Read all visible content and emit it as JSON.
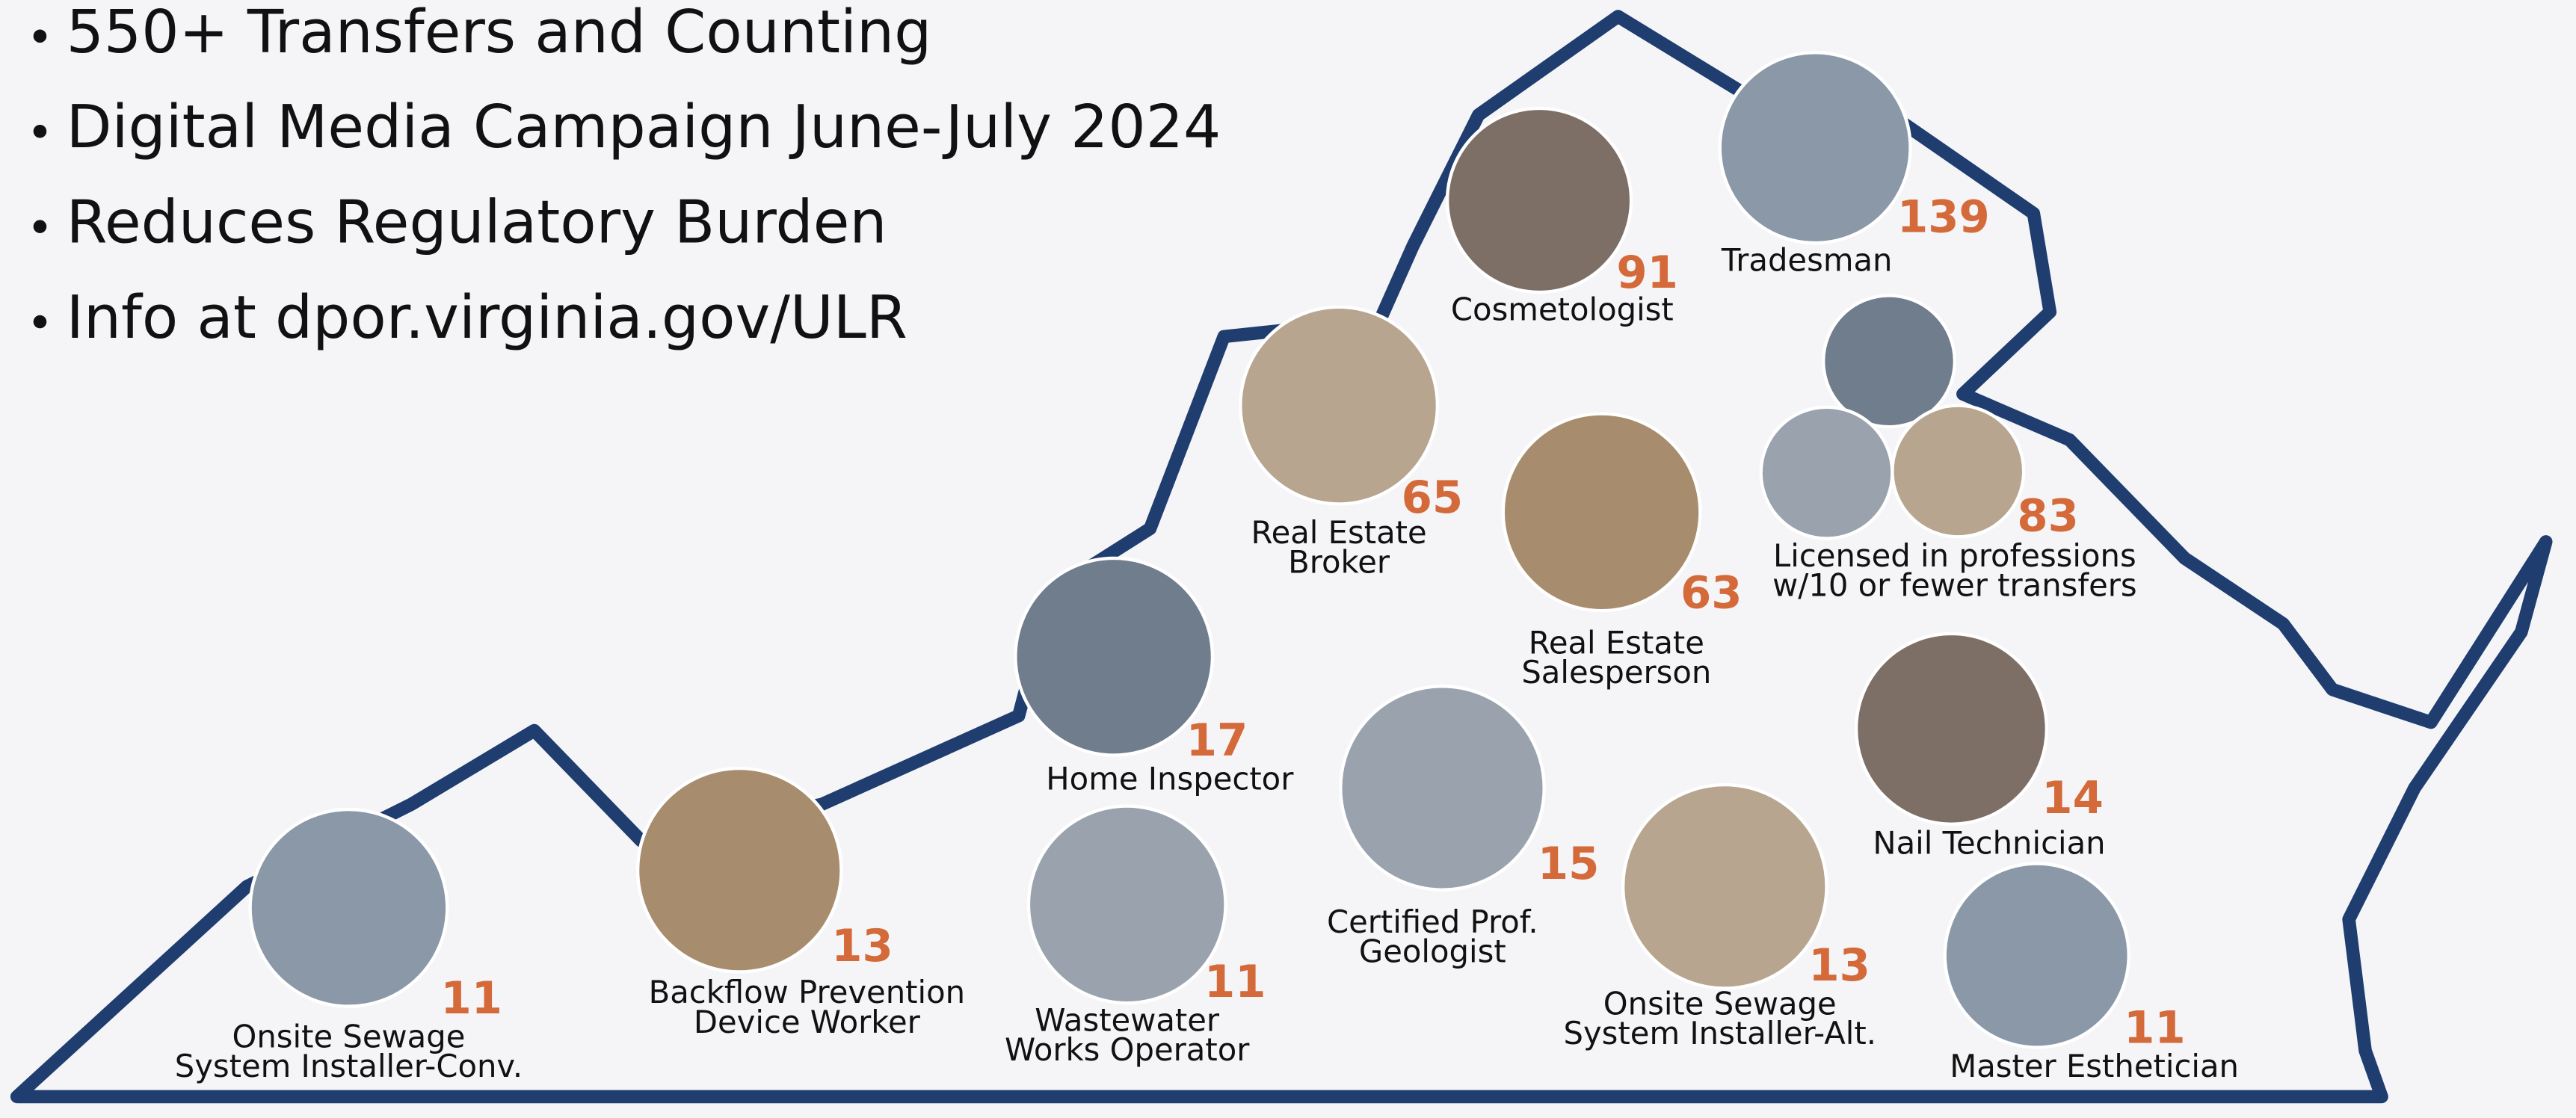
{
  "bullets": [
    "550+ Transfers and Counting",
    "Digital Media Campaign June-July 2024",
    "Reduces Regulatory Burden",
    "Info at dpor.virginia.gov/ULR"
  ],
  "items": [
    {
      "count": "11",
      "label": [
        "Onsite Sewage",
        "System Installer-Conv."
      ]
    },
    {
      "count": "13",
      "label": [
        "Backflow Prevention",
        "Device Worker"
      ]
    },
    {
      "count": "17",
      "label": [
        "Home Inspector"
      ]
    },
    {
      "count": "11",
      "label": [
        "Wastewater",
        "Works Operator"
      ]
    },
    {
      "count": "65",
      "label": [
        "Real Estate",
        "Broker"
      ]
    },
    {
      "count": "91",
      "label": [
        "Cosmetologist"
      ]
    },
    {
      "count": "139",
      "label": [
        "Tradesman"
      ]
    },
    {
      "count": "63",
      "label": [
        "Real Estate",
        "Salesperson"
      ]
    },
    {
      "count": "83",
      "label": [
        "Licensed in professions",
        "w/10 or fewer transfers"
      ]
    },
    {
      "count": "15",
      "label": [
        "Certified Prof.",
        "Geologist"
      ]
    },
    {
      "count": "13",
      "label": [
        "Onsite Sewage",
        "System Installer-Alt."
      ]
    },
    {
      "count": "14",
      "label": [
        "Nail Technician"
      ]
    },
    {
      "count": "11",
      "label": [
        "Master Esthetician"
      ]
    }
  ]
}
